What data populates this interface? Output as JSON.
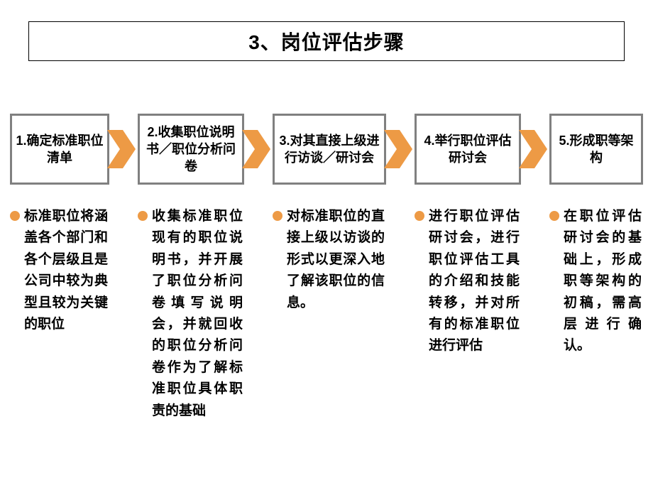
{
  "title": "3、岗位评估步骤",
  "title_box": {
    "border_color": "#000000",
    "border_width": 1,
    "background": "#ffffff"
  },
  "step_box_style": {
    "border_color": "#808080",
    "border_width": 3,
    "background": "#ffffff"
  },
  "arrow": {
    "fill": "#ed9a45",
    "stroke": "#ffffff",
    "stroke_width": 0
  },
  "bullet_color": "#ed9a45",
  "text_color": "#000000",
  "steps": [
    {
      "label": "1.确定标准职位清单",
      "width": 140,
      "desc": "标准职位将涵盖各个部门和各个层级且是公司中较为典型且较为关键的职位"
    },
    {
      "label": "2.收集职位说明书／职位分析问卷",
      "width": 150,
      "desc": "收集标准职位现有的职位说明书，并开展了职位分析问卷填写说明会，并就回收的职位分析问卷作为了解标准职位具体职责的基础"
    },
    {
      "label": "3.对其直接上级进行访谈／研讨会",
      "width": 160,
      "desc": "对标准职位的直接上级以访谈的形式以更深入地了解该职位的信息。"
    },
    {
      "label": "4.举行职位评估研讨会",
      "width": 150,
      "desc": "进行职位评估研讨会，进行职位评估工具的介绍和技能转移，并对所有的标准职位进行评估"
    },
    {
      "label": "5.形成职等架构",
      "width": 132,
      "desc": "在职位评估研讨会的基础上，形成职等架构的初稿，需高层进行确认。"
    }
  ]
}
